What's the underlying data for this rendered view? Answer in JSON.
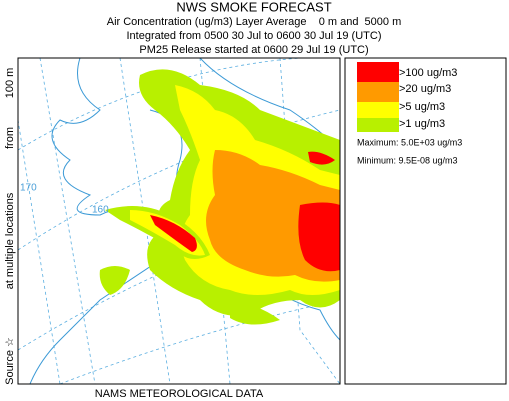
{
  "header": {
    "title": "NWS SMOKE FORECAST",
    "lines": [
      "Air Concentration (ug/m3) Layer Average    0 m and  5000 m",
      "Integrated from 0500 30 Jul to 0600 30 Jul 19 (UTC)",
      "PM25 Release started at 0600 29 Jul 19 (UTC)"
    ]
  },
  "side_label": [
    "Source ☆",
    "at multiple locations",
    "from",
    "100 m"
  ],
  "map": {
    "longitude_labels": [
      "170",
      "160"
    ]
  },
  "legend": {
    "entries": [
      ">100 ug/m3",
      ">20 ug/m3",
      ">5 ug/m3",
      ">1 ug/m3"
    ],
    "maximum": "Maximum: 5.0E+03 ug/m3",
    "minimum": "Minimum: 9.5E-08 ug/m3"
  },
  "footer": "NAMS METEOROLOGICAL DATA"
}
